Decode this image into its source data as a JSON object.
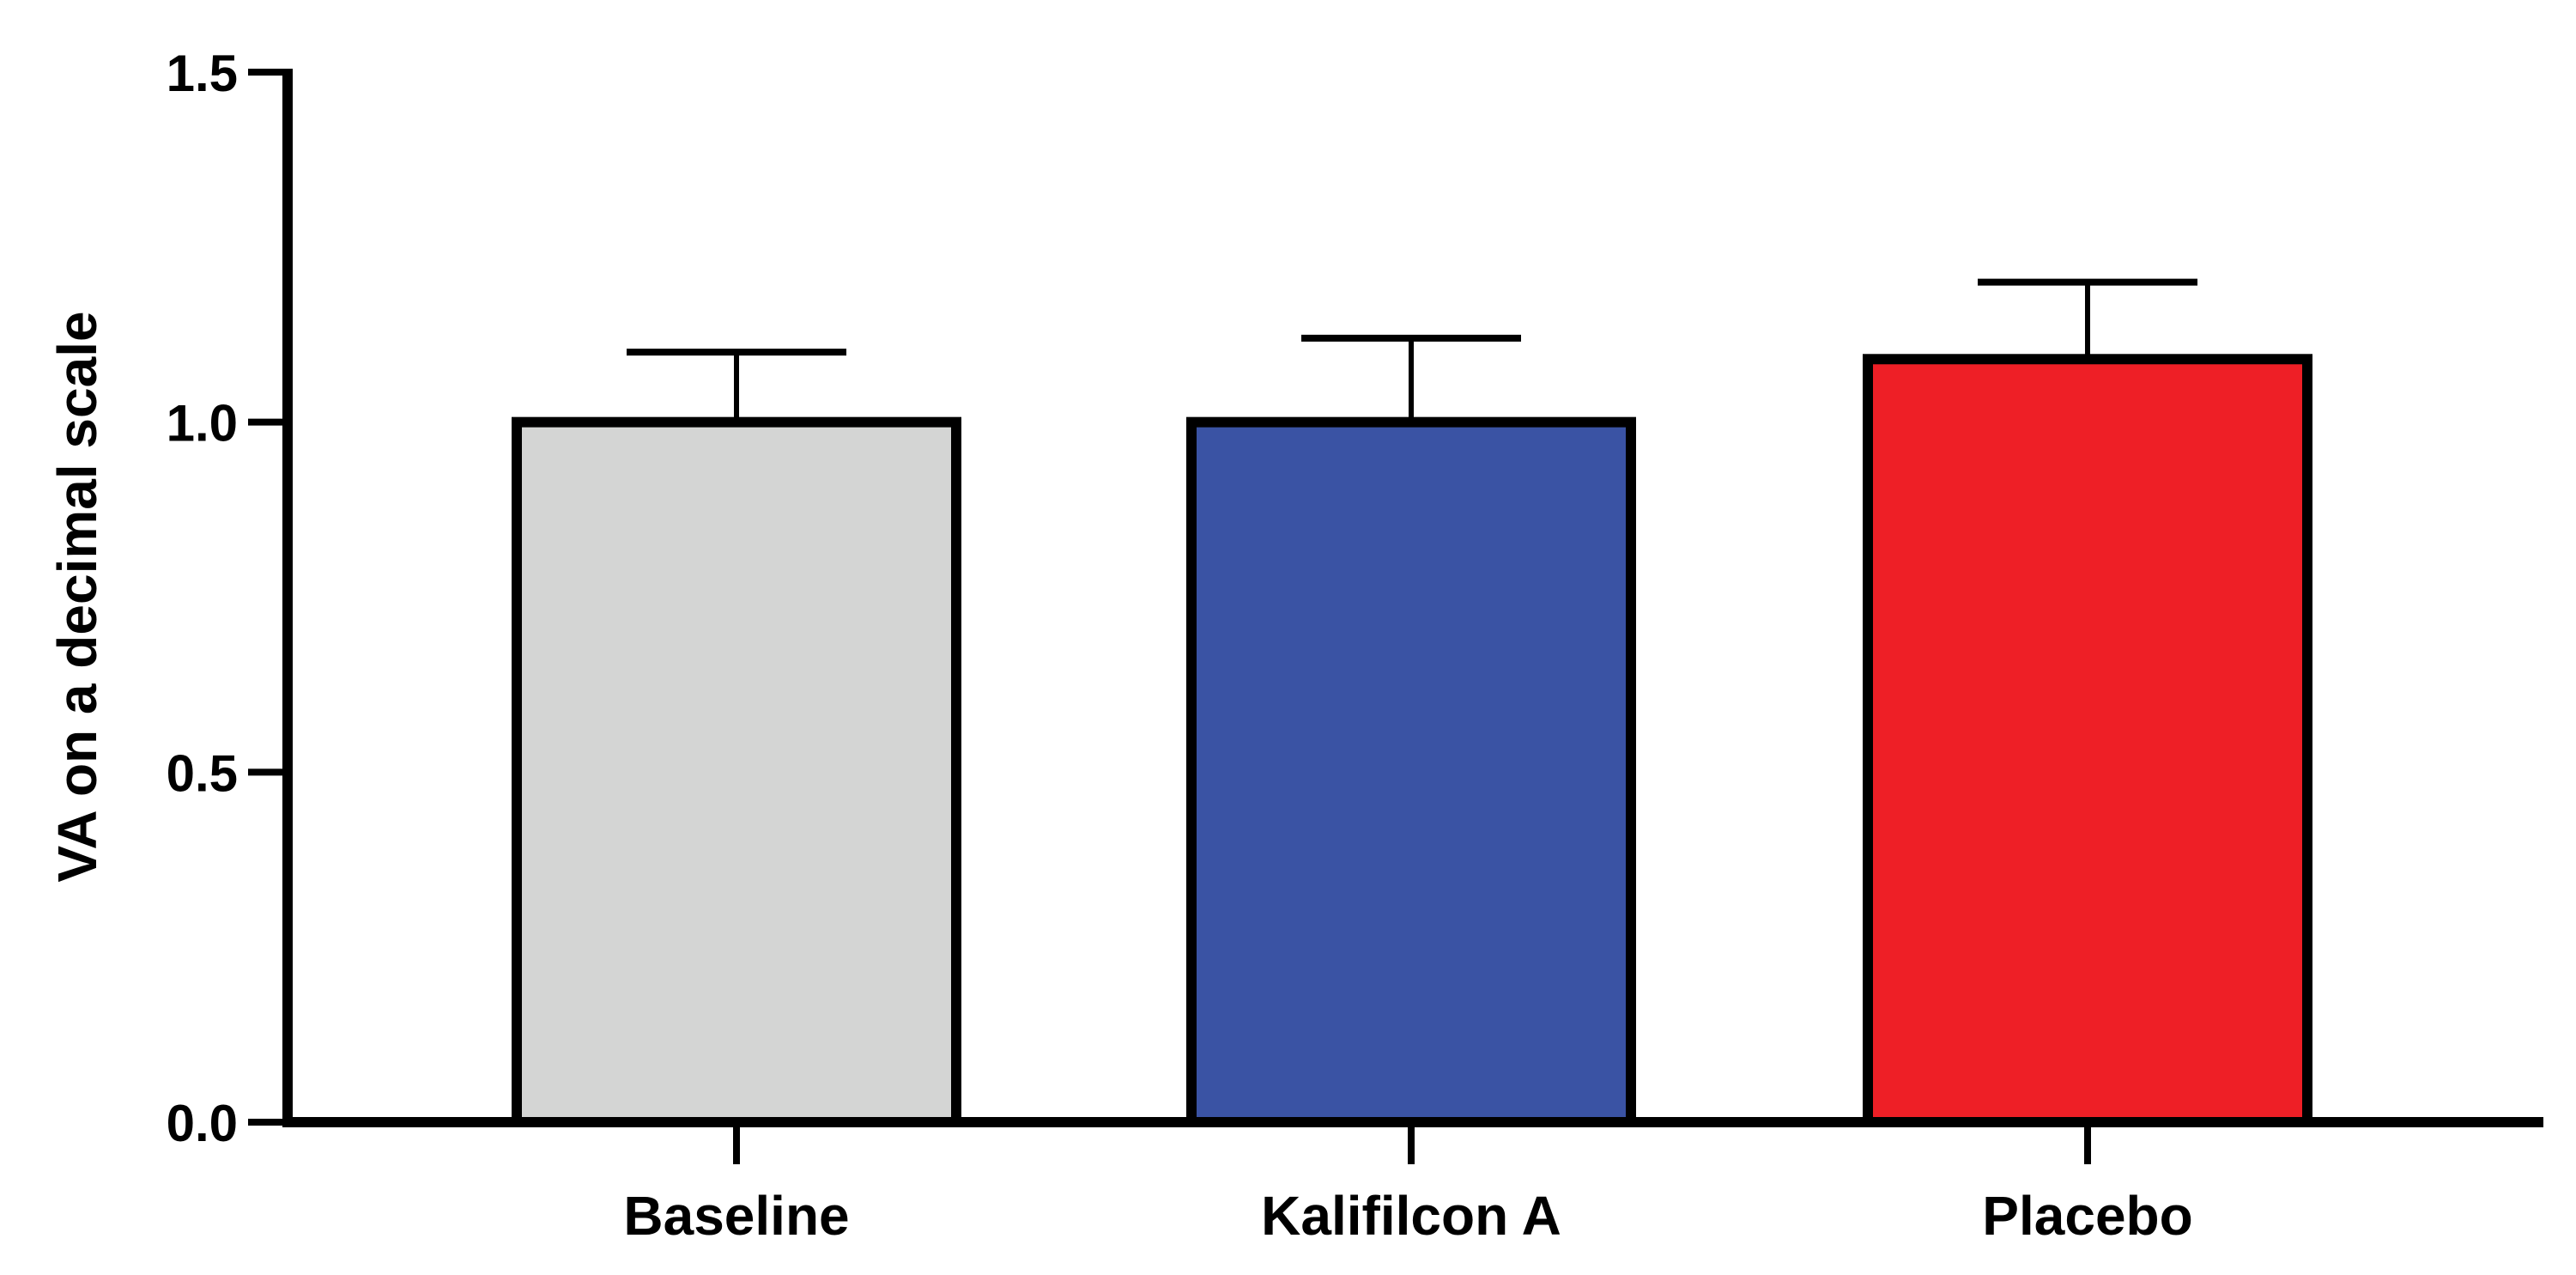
{
  "chart_data": {
    "type": "bar",
    "title": "",
    "xlabel": "",
    "ylabel": "VA on a decimal scale",
    "ylim": [
      0,
      1.5
    ],
    "yticks": [
      "0.0",
      "0.5",
      "1.0",
      "1.5"
    ],
    "ytick_values": [
      0,
      0.5,
      1.0,
      1.5
    ],
    "categories": [
      "Baseline",
      "Kalifilcon A",
      "Placebo"
    ],
    "values": [
      1.0,
      1.0,
      1.09
    ],
    "error_upper": [
      0.1,
      0.12,
      0.11
    ],
    "colors": [
      "#d4d5d4",
      "#3a53a4",
      "#ee1f26"
    ],
    "grid": false,
    "legend": "none"
  }
}
